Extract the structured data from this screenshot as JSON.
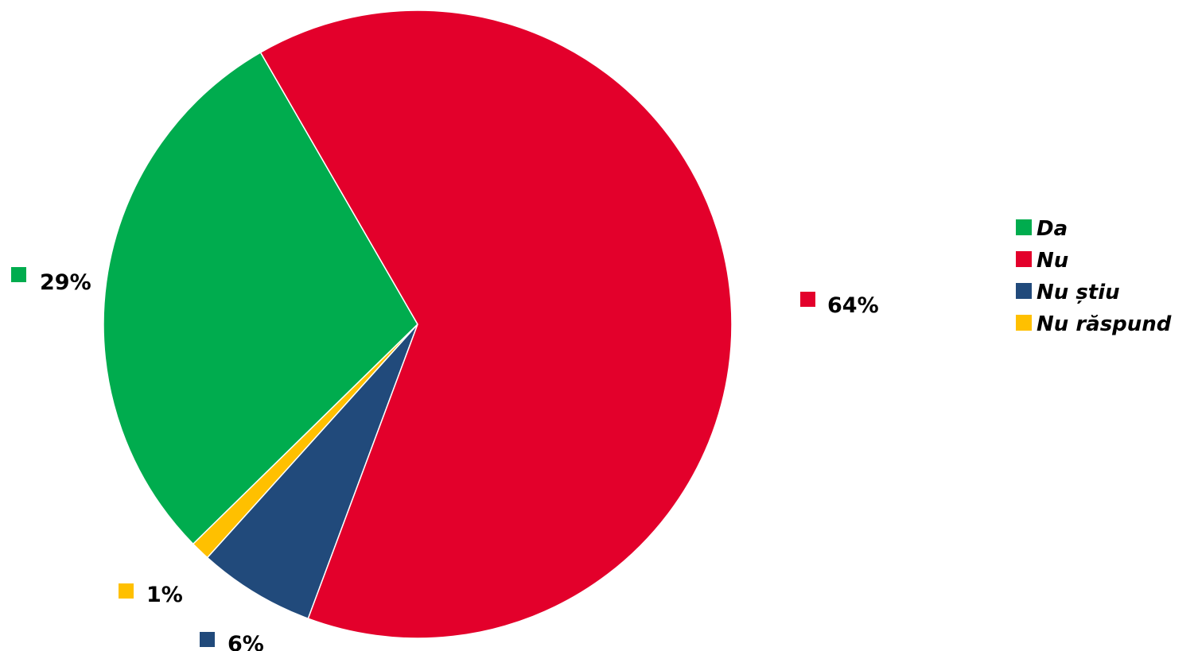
{
  "chart_data": {
    "type": "pie",
    "categories": [
      "Da",
      "Nu",
      "Nu știu",
      "Nu răspund"
    ],
    "values": [
      29,
      64,
      6,
      1
    ],
    "value_labels": [
      "29%",
      "64%",
      "6%",
      "1%"
    ],
    "colors": [
      "#00ac4e",
      "#e3002b",
      "#214a7b",
      "#ffc000"
    ],
    "legend": {
      "placement": "right",
      "entries": [
        "Da",
        "Nu",
        "Nu știu",
        "Nu răspund"
      ]
    },
    "title": ""
  }
}
